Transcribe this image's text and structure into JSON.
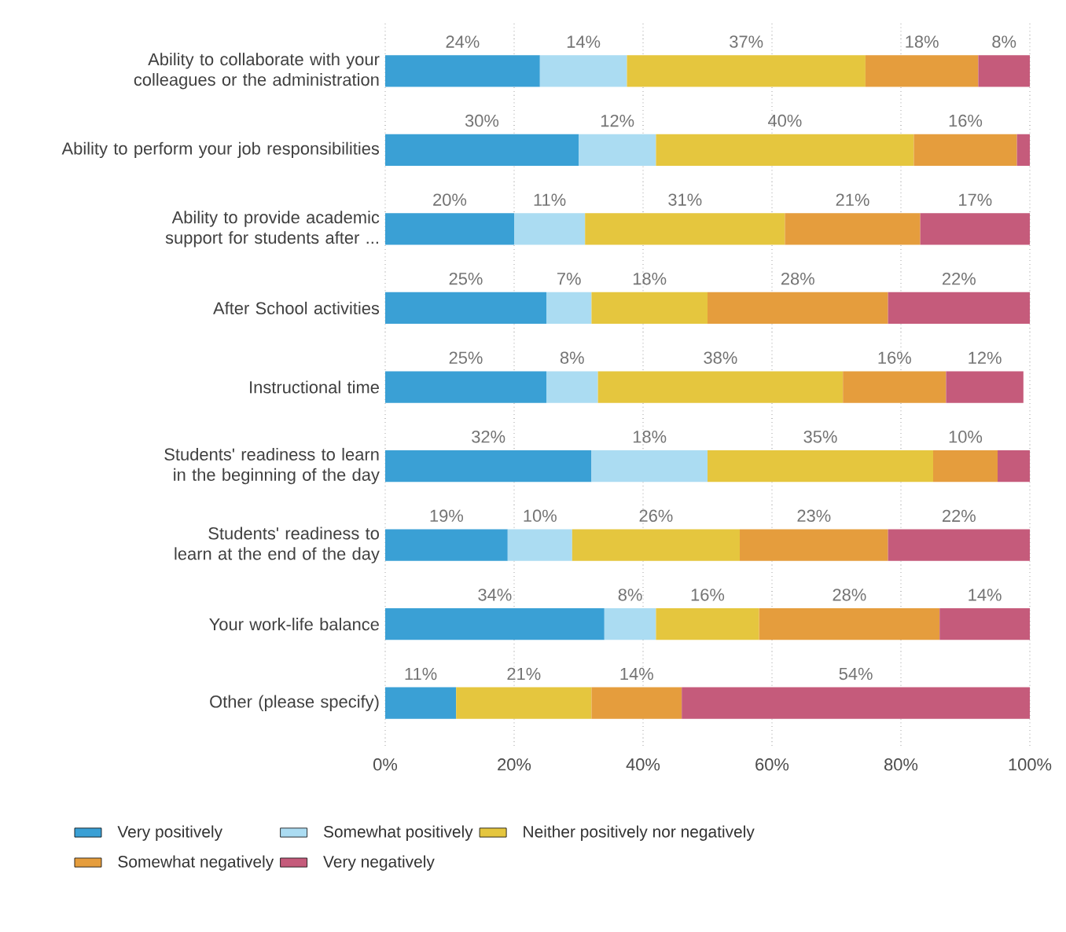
{
  "chart_data": {
    "type": "bar",
    "orientation": "horizontal",
    "stacked": true,
    "categories": [
      "Ability to collaborate with your colleagues or the administration",
      "Ability to perform your job responsibilities",
      "Ability to provide academic support for students after ...",
      "After School activities",
      "Instructional time",
      "Students' readiness to learn in the beginning of the day",
      "Students' readiness to learn at the end of the day",
      "Your work-life balance",
      "Other (please specify)"
    ],
    "series": [
      {
        "name": "Very positively",
        "color": "#3aa0d5",
        "values": [
          24,
          30,
          20,
          25,
          25,
          32,
          19,
          34,
          11
        ],
        "value_labels": [
          "24%",
          "30%",
          "20%",
          "25%",
          "25%",
          "32%",
          "19%",
          "34%",
          "11%"
        ]
      },
      {
        "name": "Somewhat positively",
        "color": "#abdcf2",
        "values": [
          13.5,
          12,
          11,
          7,
          8,
          18,
          10,
          8,
          null
        ],
        "value_labels": [
          "14%",
          "12%",
          "11%",
          "7%",
          "8%",
          "18%",
          "10%",
          "8%",
          null
        ]
      },
      {
        "name": "Neither positively nor negatively",
        "color": "#e5c63e",
        "values": [
          37,
          40,
          31,
          18,
          38,
          35,
          26,
          16,
          21
        ],
        "value_labels": [
          "37%",
          "40%",
          "31%",
          "18%",
          "38%",
          "35%",
          "26%",
          "16%",
          "21%"
        ]
      },
      {
        "name": "Somewhat negatively",
        "color": "#e59d3d",
        "values": [
          17.5,
          16,
          21,
          28,
          16,
          10,
          23,
          28,
          14
        ],
        "value_labels": [
          "18%",
          "16%",
          "21%",
          "28%",
          "16%",
          "10%",
          "23%",
          "28%",
          "14%"
        ]
      },
      {
        "name": "Very negatively",
        "color": "#c55b7b",
        "values": [
          8,
          2,
          17,
          22,
          12,
          5,
          22,
          14,
          54
        ],
        "value_labels": [
          "8%",
          null,
          "17%",
          "22%",
          "12%",
          null,
          "22%",
          "14%",
          "54%"
        ]
      }
    ],
    "xlim": [
      0,
      100
    ],
    "xticks": [
      {
        "value": 0,
        "label": "0%"
      },
      {
        "value": 20,
        "label": "20%"
      },
      {
        "value": 40,
        "label": "40%"
      },
      {
        "value": 60,
        "label": "60%"
      },
      {
        "value": 80,
        "label": "80%"
      },
      {
        "value": 100,
        "label": "100%"
      }
    ],
    "grid": "x",
    "legend": "bottom"
  }
}
